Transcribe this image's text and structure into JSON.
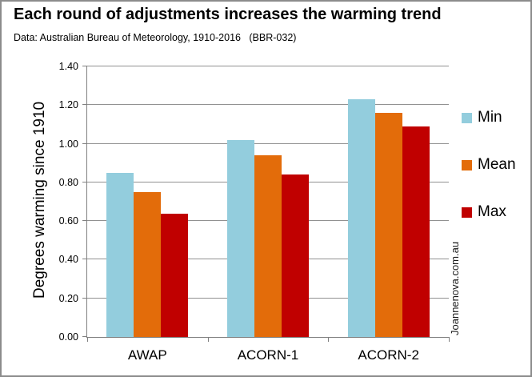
{
  "header": {
    "title": "Each round of adjustments increases the warming trend",
    "subtitle": "Data: Australian Bureau of Meteorology, 1910-2016   (BBR-032)"
  },
  "watermark": "Joannenova.com.au",
  "colors": {
    "min_series": "#93CDDD",
    "mean_series": "#E36C0A",
    "max_series": "#C00000",
    "gridline": "#919191",
    "axis": "#808080"
  },
  "chart_data": {
    "type": "bar",
    "title": "Each round of adjustments increases the warming trend",
    "subtitle": "Data: Australian Bureau of Meteorology, 1910-2016   (BBR-032)",
    "categories": [
      "AWAP",
      "ACORN-1",
      "ACORN-2"
    ],
    "series": [
      {
        "name": "Min",
        "color": "#93CDDD",
        "values": [
          0.85,
          1.02,
          1.23
        ]
      },
      {
        "name": "Mean",
        "color": "#E36C0A",
        "values": [
          0.75,
          0.94,
          1.16
        ]
      },
      {
        "name": "Max",
        "color": "#C00000",
        "values": [
          0.64,
          0.84,
          1.09
        ]
      }
    ],
    "xlabel": "",
    "ylabel": "Degrees warming since 1910",
    "ylim": [
      0,
      1.4
    ],
    "ytick_step": 0.2,
    "ytick_labels": [
      "0.00",
      "0.20",
      "0.40",
      "0.60",
      "0.80",
      "1.00",
      "1.20",
      "1.40"
    ],
    "grid": true,
    "legend_position": "right"
  }
}
